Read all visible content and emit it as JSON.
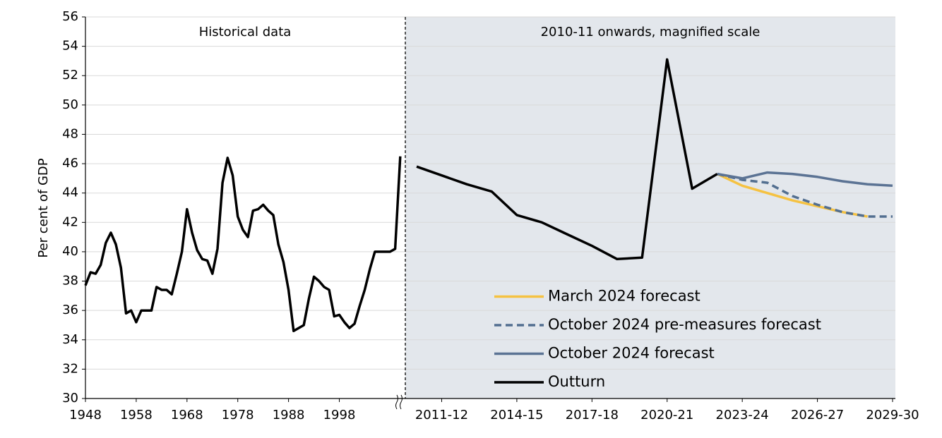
{
  "chart_data": [
    {
      "type": "line",
      "annotation": "Historical data",
      "ylabel": "Per cent of GDP",
      "x": [
        1948,
        1949,
        1950,
        1951,
        1952,
        1953,
        1954,
        1955,
        1956,
        1957,
        1958,
        1959,
        1960,
        1961,
        1962,
        1963,
        1964,
        1965,
        1966,
        1967,
        1968,
        1969,
        1970,
        1971,
        1972,
        1973,
        1974,
        1975,
        1976,
        1977,
        1978,
        1979,
        1980,
        1981,
        1982,
        1983,
        1984,
        1985,
        1986,
        1987,
        1988,
        1989,
        1990,
        1991,
        1992,
        1993,
        1994,
        1995,
        1996,
        1997,
        1998,
        1999,
        2000,
        2001,
        2002,
        2003,
        2004,
        2005,
        2006,
        2007,
        2008,
        2009,
        2010
      ],
      "values": [
        37.7,
        38.6,
        38.5,
        39.1,
        40.6,
        41.3,
        40.5,
        38.9,
        35.8,
        36.0,
        35.2,
        36.0,
        36.0,
        36.0,
        37.6,
        37.4,
        37.4,
        37.1,
        38.5,
        40.0,
        42.9,
        41.3,
        40.1,
        39.5,
        39.4,
        38.5,
        40.2,
        44.7,
        46.4,
        45.2,
        42.4,
        41.5,
        41.0,
        42.8,
        42.9,
        43.2,
        42.8,
        42.5,
        40.5,
        39.3,
        37.4,
        34.6,
        34.8,
        35.0,
        36.8,
        38.3,
        38.0,
        37.6,
        37.4,
        35.6,
        35.7,
        35.2,
        34.8,
        35.1,
        36.3,
        37.4,
        38.8,
        40.0,
        40.0,
        40.0,
        40.0,
        40.2,
        46.5
      ],
      "color": "#000000",
      "xlim": [
        1948,
        2011
      ],
      "xticks": [
        1948,
        1958,
        1968,
        1978,
        1988,
        1998
      ],
      "ylim": [
        30,
        56
      ],
      "yticks": [
        30,
        32,
        34,
        36,
        38,
        40,
        42,
        44,
        46,
        48,
        50,
        52,
        54,
        56
      ],
      "grid": true
    },
    {
      "type": "line",
      "annotation": "2010-11 onwards, magnified scale",
      "background": "#e3e7ec",
      "categories": [
        null,
        "2011-12",
        null,
        null,
        "2014-15",
        null,
        null,
        "2017-18",
        null,
        null,
        "2020-21",
        null,
        null,
        "2023-24",
        null,
        null,
        "2026-27",
        null,
        null,
        "2029-30"
      ],
      "ylim": [
        30,
        56
      ],
      "legend": "lower right",
      "series": [
        {
          "name": "March 2024 forecast",
          "color": "#f5c242",
          "dash": false,
          "values": [
            null,
            null,
            null,
            null,
            null,
            null,
            null,
            null,
            null,
            null,
            null,
            null,
            45.3,
            44.5,
            44.0,
            43.5,
            43.1,
            42.7,
            42.4,
            null
          ]
        },
        {
          "name": "October 2024 pre-measures forecast",
          "color": "#536f90",
          "dash": true,
          "values": [
            null,
            null,
            null,
            null,
            null,
            null,
            null,
            null,
            null,
            null,
            null,
            null,
            45.3,
            44.9,
            44.7,
            43.8,
            43.2,
            42.7,
            42.4,
            42.4
          ]
        },
        {
          "name": "October 2024 forecast",
          "color": "#5b7394",
          "dash": false,
          "values": [
            null,
            null,
            null,
            null,
            null,
            null,
            null,
            null,
            null,
            null,
            null,
            null,
            45.3,
            45.0,
            45.4,
            45.3,
            45.1,
            44.8,
            44.6,
            44.5
          ]
        },
        {
          "name": "Outturn",
          "color": "#000000",
          "dash": false,
          "values": [
            45.8,
            45.2,
            44.6,
            44.1,
            42.5,
            42.0,
            41.2,
            40.4,
            39.5,
            39.6,
            53.1,
            44.3,
            45.3,
            null,
            null,
            null,
            null,
            null,
            null,
            null
          ]
        }
      ]
    }
  ]
}
